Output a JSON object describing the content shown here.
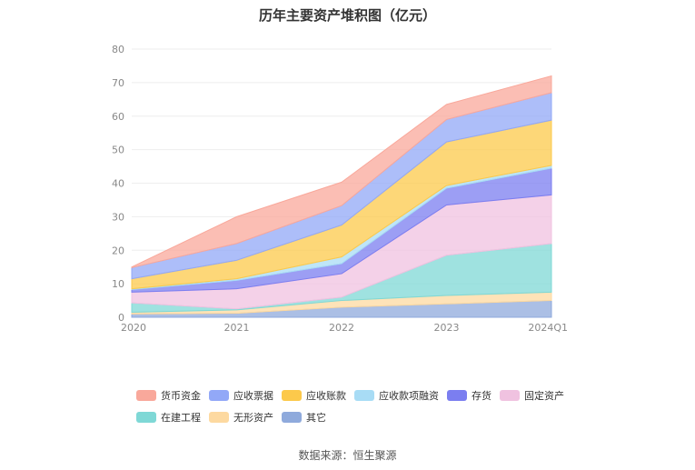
{
  "title": "历年主要资产堆积图（亿元）",
  "source": "数据来源：恒生聚源",
  "chart_data": {
    "type": "area",
    "stacked": true,
    "categories": [
      "2020",
      "2021",
      "2022",
      "2023",
      "2024Q1"
    ],
    "ylim": [
      0,
      80
    ],
    "yticks": [
      0,
      10,
      20,
      30,
      40,
      50,
      60,
      70,
      80
    ],
    "grid": true,
    "legend_position": "bottom",
    "series": [
      {
        "name": "其它",
        "color": "#8faadc",
        "values": [
          1.0,
          1.2,
          3.0,
          4.0,
          5.0
        ]
      },
      {
        "name": "无形资产",
        "color": "#fdd9a0",
        "values": [
          0.5,
          1.0,
          2.0,
          2.5,
          2.5
        ]
      },
      {
        "name": "在建工程",
        "color": "#7fd8d6",
        "values": [
          2.8,
          0.3,
          1.0,
          12.0,
          14.5
        ]
      },
      {
        "name": "固定资产",
        "color": "#f0c2e0",
        "values": [
          3.2,
          6.0,
          7.0,
          15.0,
          14.5
        ]
      },
      {
        "name": "存货",
        "color": "#7b7ef0",
        "values": [
          0.8,
          2.5,
          3.0,
          5.0,
          8.0
        ]
      },
      {
        "name": "应收款项融资",
        "color": "#a8dcf5",
        "values": [
          0.2,
          0.5,
          2.0,
          0.8,
          0.8
        ]
      },
      {
        "name": "应收账款",
        "color": "#fcc94b",
        "values": [
          3.0,
          5.5,
          9.5,
          13.0,
          13.5
        ]
      },
      {
        "name": "应收票据",
        "color": "#92a8f7",
        "values": [
          3.3,
          5.0,
          5.8,
          6.7,
          8.2
        ]
      },
      {
        "name": "货币资金",
        "color": "#f9a89b",
        "values": [
          0.2,
          8.0,
          7.0,
          4.5,
          5.0
        ]
      }
    ]
  },
  "legend_order": [
    "货币资金",
    "应收票据",
    "应收账款",
    "应收款项融资",
    "存货",
    "固定资产",
    "在建工程",
    "无形资产",
    "其它"
  ]
}
